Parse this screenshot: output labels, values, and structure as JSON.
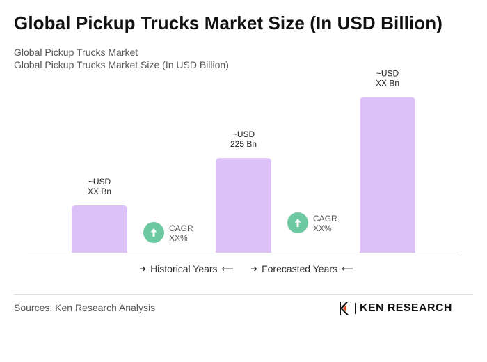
{
  "title": "Global Pickup Trucks Market Size (In USD Billion)",
  "subtitle_1": "Global Pickup Trucks Market",
  "subtitle_2": "Global Pickup Trucks Market Size (In USD Billion)",
  "chart_data": {
    "type": "bar",
    "categories": [
      "",
      "",
      ""
    ],
    "values": [
      35,
      70,
      115
    ],
    "value_labels": [
      [
        "~USD",
        "XX Bn"
      ],
      [
        "~USD",
        "225 Bn"
      ],
      [
        "~USD",
        "XX Bn"
      ]
    ],
    "cagr_badges": [
      [
        "CAGR",
        "XX%"
      ],
      [
        "CAGR",
        "XX%"
      ]
    ],
    "ylim": [
      0,
      120
    ],
    "grid": false,
    "bar_color": "#dcc1f7",
    "badge_color": "#6cc9a1"
  },
  "legend": {
    "historical": "Historical Years",
    "forecasted": "Forecasted Years"
  },
  "sources": "Sources: Ken Research Analysis",
  "logo": {
    "text": "KEN RESEARCH",
    "icon": "ken-research-logo-icon"
  }
}
